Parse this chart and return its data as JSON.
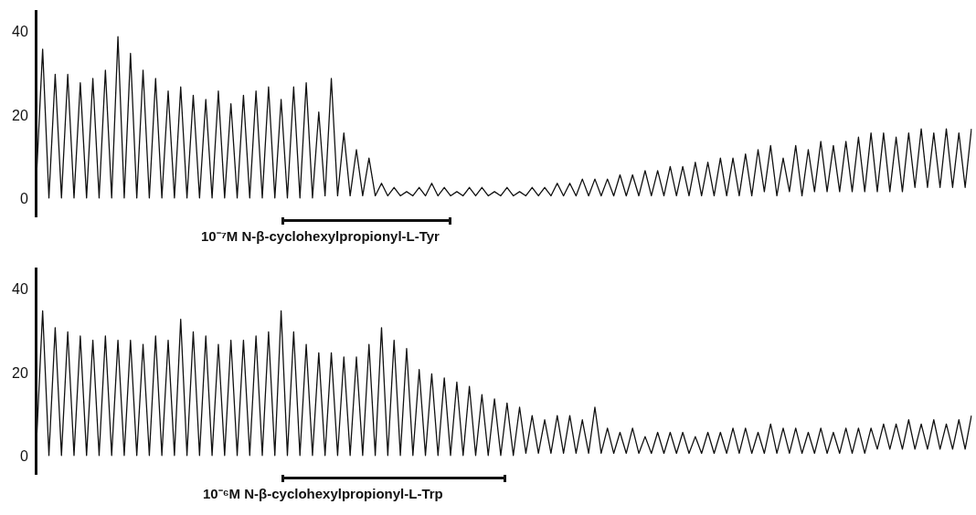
{
  "chart_data": [
    {
      "type": "line",
      "ylim": [
        -4,
        45
      ],
      "yticks": [
        0,
        20,
        40
      ],
      "grid": false,
      "legend": false,
      "tick_labels": "y",
      "categories": [
        null,
        null,
        null,
        null,
        null,
        null,
        null,
        null,
        null,
        null,
        null,
        null,
        null,
        null,
        null,
        null,
        null,
        null,
        null,
        null,
        null,
        null,
        null,
        null,
        null,
        null,
        null,
        null,
        null,
        null,
        null,
        null,
        null,
        null,
        null,
        null,
        null,
        null,
        null,
        null,
        null,
        null,
        null,
        null,
        null,
        null,
        null,
        null,
        null,
        null,
        null,
        null,
        null,
        null,
        null,
        null,
        null,
        null,
        null,
        null,
        null,
        null,
        null,
        null,
        null,
        null,
        null,
        null,
        null,
        null,
        null,
        null,
        null,
        null,
        null,
        null,
        null,
        null,
        null,
        null,
        null,
        null,
        null,
        null,
        null,
        null,
        null,
        null,
        null,
        null,
        null,
        null,
        null,
        null,
        null,
        null,
        null,
        null,
        null,
        null,
        null,
        null,
        null,
        null,
        null,
        null,
        null,
        null,
        null,
        null,
        null,
        null,
        null,
        null,
        null,
        null,
        null,
        null,
        null,
        null,
        null,
        null,
        null,
        null,
        null,
        null,
        null,
        null,
        null,
        null,
        null,
        null,
        null,
        null,
        null,
        null,
        null,
        null,
        null,
        null,
        null,
        null,
        null,
        null,
        null,
        null,
        null,
        null,
        null,
        null
      ],
      "series": [
        {
          "color": "#111111",
          "values": [
            5,
            36,
            0.5,
            30,
            0.5,
            30,
            0.5,
            28,
            0.5,
            29,
            0.5,
            31,
            0.5,
            39,
            0.5,
            35,
            0.5,
            31,
            0.5,
            29,
            0.5,
            26,
            0.5,
            27,
            0.5,
            25,
            0.5,
            24,
            0.5,
            26,
            0.5,
            23,
            0.5,
            25,
            0.5,
            26,
            0.5,
            27,
            0.5,
            24,
            0.5,
            27,
            0.5,
            28,
            0.5,
            21,
            1,
            29,
            1,
            16,
            1,
            12,
            1,
            10,
            1,
            4,
            1,
            3,
            1,
            2,
            1,
            3,
            1,
            4,
            1,
            3,
            1,
            2,
            1,
            3,
            1,
            3,
            1,
            2,
            1,
            3,
            1,
            2,
            1,
            3,
            1,
            3,
            1,
            4,
            1,
            4,
            1,
            5,
            1,
            5,
            1,
            5,
            1,
            6,
            1,
            6,
            1,
            7,
            1,
            7,
            1,
            8,
            1,
            8,
            1,
            9,
            1,
            9,
            1,
            10,
            1,
            10,
            1,
            11,
            1,
            12,
            2,
            13,
            1,
            10,
            2,
            13,
            1,
            12,
            2,
            14,
            2,
            13,
            2,
            14,
            2,
            15,
            2,
            16,
            2,
            16,
            2,
            15,
            2,
            16,
            3,
            17,
            3,
            16,
            3,
            17,
            3,
            16,
            3,
            17
          ]
        }
      ],
      "annotations": [
        "10⁻⁷M N-β-cyclohexylpropionyl-L-Tyr"
      ]
    },
    {
      "type": "line",
      "ylim": [
        -4,
        45
      ],
      "yticks": [
        0,
        20,
        40
      ],
      "grid": false,
      "legend": false,
      "tick_labels": "y",
      "categories": [
        null,
        null,
        null,
        null,
        null,
        null,
        null,
        null,
        null,
        null,
        null,
        null,
        null,
        null,
        null,
        null,
        null,
        null,
        null,
        null,
        null,
        null,
        null,
        null,
        null,
        null,
        null,
        null,
        null,
        null,
        null,
        null,
        null,
        null,
        null,
        null,
        null,
        null,
        null,
        null,
        null,
        null,
        null,
        null,
        null,
        null,
        null,
        null,
        null,
        null,
        null,
        null,
        null,
        null,
        null,
        null,
        null,
        null,
        null,
        null,
        null,
        null,
        null,
        null,
        null,
        null,
        null,
        null,
        null,
        null,
        null,
        null,
        null,
        null,
        null,
        null,
        null,
        null,
        null,
        null,
        null,
        null,
        null,
        null,
        null,
        null,
        null,
        null,
        null,
        null,
        null,
        null,
        null,
        null,
        null,
        null,
        null,
        null,
        null,
        null,
        null,
        null,
        null,
        null,
        null,
        null,
        null,
        null,
        null,
        null,
        null,
        null,
        null,
        null,
        null,
        null,
        null,
        null,
        null,
        null,
        null,
        null,
        null,
        null,
        null,
        null,
        null,
        null,
        null,
        null,
        null,
        null,
        null,
        null,
        null,
        null,
        null,
        null,
        null,
        null,
        null,
        null,
        null,
        null,
        null,
        null,
        null,
        null,
        null,
        null
      ],
      "series": [
        {
          "color": "#111111",
          "values": [
            3,
            35,
            0.5,
            31,
            0.5,
            30,
            0.5,
            29,
            0.5,
            28,
            0.5,
            29,
            0.5,
            28,
            0.5,
            28,
            0.5,
            27,
            0.5,
            29,
            0.5,
            28,
            0.5,
            33,
            0.5,
            30,
            0.5,
            29,
            0.5,
            27,
            0.5,
            28,
            0.5,
            28,
            0.5,
            29,
            0.5,
            30,
            0.5,
            35,
            0.5,
            30,
            0.5,
            27,
            0.5,
            25,
            0.5,
            25,
            0.5,
            24,
            0.5,
            24,
            0.5,
            27,
            0.5,
            31,
            0.5,
            28,
            0.5,
            26,
            0.5,
            21,
            0.5,
            20,
            0.5,
            19,
            0.5,
            18,
            0.5,
            17,
            0.5,
            15,
            0.5,
            14,
            0.5,
            13,
            0.5,
            12,
            1,
            10,
            1,
            9,
            1,
            10,
            1,
            10,
            1,
            9,
            1,
            12,
            1,
            7,
            1,
            6,
            1,
            7,
            1,
            5,
            1,
            6,
            1,
            6,
            1,
            6,
            1,
            5,
            1,
            6,
            1,
            6,
            1,
            7,
            1,
            7,
            1,
            6,
            1,
            8,
            1,
            7,
            1,
            7,
            1,
            6,
            1,
            7,
            1,
            6,
            1,
            7,
            1,
            7,
            1,
            7,
            2,
            8,
            2,
            8,
            2,
            9,
            2,
            8,
            2,
            9,
            2,
            8,
            2,
            9,
            2,
            10
          ]
        }
      ],
      "annotations": [
        "10⁻⁶M N-β-cyclohexylpropionyl-L-Trp"
      ]
    }
  ]
}
